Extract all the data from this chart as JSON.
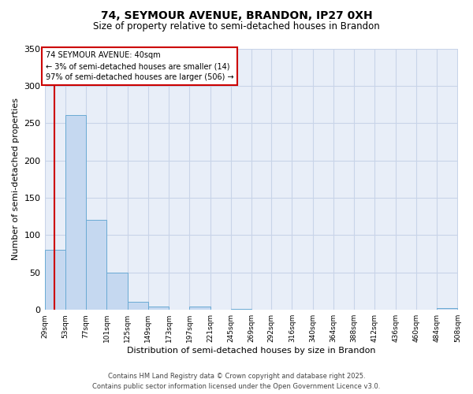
{
  "title_line1": "74, SEYMOUR AVENUE, BRANDON, IP27 0XH",
  "title_line2": "Size of property relative to semi-detached houses in Brandon",
  "xlabel": "Distribution of semi-detached houses by size in Brandon",
  "ylabel": "Number of semi-detached properties",
  "annotation_title": "74 SEYMOUR AVENUE: 40sqm",
  "annotation_line2": "← 3% of semi-detached houses are smaller (14)",
  "annotation_line3": "97% of semi-detached houses are larger (506) →",
  "bins": [
    29,
    53,
    77,
    101,
    125,
    149,
    173,
    197,
    221,
    245,
    269,
    292,
    316,
    340,
    364,
    388,
    412,
    436,
    460,
    484,
    508
  ],
  "counts": [
    80,
    261,
    120,
    50,
    11,
    4,
    0,
    4,
    0,
    1,
    0,
    0,
    0,
    0,
    0,
    0,
    0,
    0,
    0,
    2
  ],
  "bar_color": "#c5d8f0",
  "bar_edge_color": "#6aaad4",
  "vline_x": 40,
  "vline_color": "#cc0000",
  "ylim": [
    0,
    350
  ],
  "yticks": [
    0,
    50,
    100,
    150,
    200,
    250,
    300,
    350
  ],
  "grid_color": "#c8d4e8",
  "background_color": "#e8eef8",
  "annotation_box_facecolor": "white",
  "annotation_box_edgecolor": "#cc0000",
  "footer_line1": "Contains HM Land Registry data © Crown copyright and database right 2025.",
  "footer_line2": "Contains public sector information licensed under the Open Government Licence v3.0."
}
